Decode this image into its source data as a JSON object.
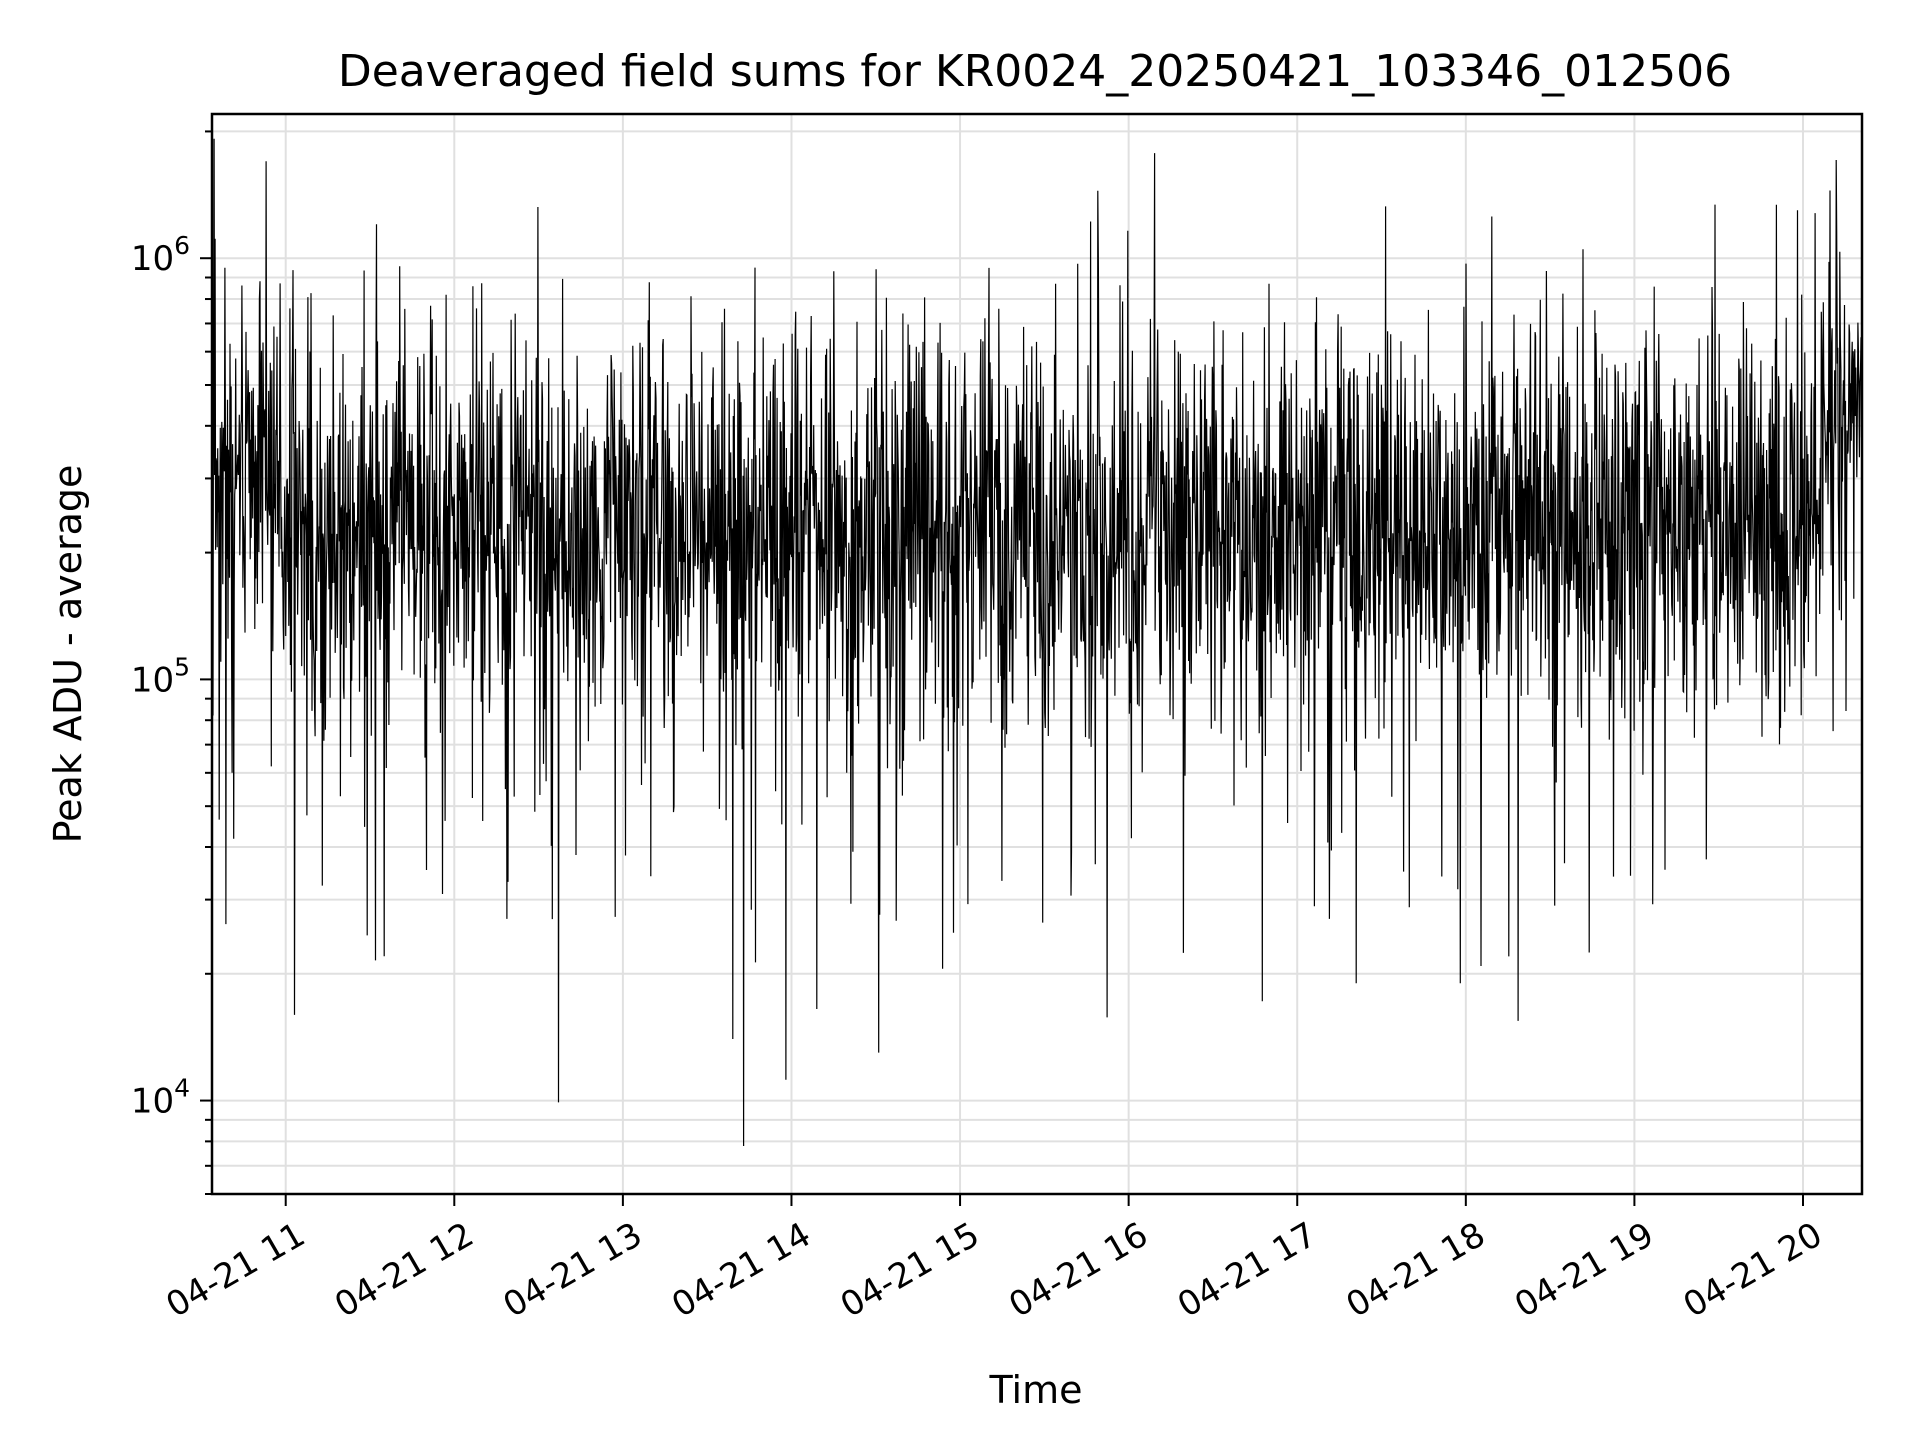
{
  "chart_data": {
    "type": "line",
    "title": "Deaveraged field sums for KR0024_20250421_103346_012506",
    "xlabel": "Time",
    "ylabel": "Peak ADU - average",
    "yscale": "log",
    "ylim": [
      6000,
      2200000
    ],
    "xlim": [
      "2025-04-21 10:33:46",
      "2025-04-21 20:21:00"
    ],
    "x_ticks": [
      {
        "time": "2025-04-21 11:00",
        "label": "04-21 11"
      },
      {
        "time": "2025-04-21 12:00",
        "label": "04-21 12"
      },
      {
        "time": "2025-04-21 13:00",
        "label": "04-21 13"
      },
      {
        "time": "2025-04-21 14:00",
        "label": "04-21 14"
      },
      {
        "time": "2025-04-21 15:00",
        "label": "04-21 15"
      },
      {
        "time": "2025-04-21 16:00",
        "label": "04-21 16"
      },
      {
        "time": "2025-04-21 17:00",
        "label": "04-21 17"
      },
      {
        "time": "2025-04-21 18:00",
        "label": "04-21 18"
      },
      {
        "time": "2025-04-21 19:00",
        "label": "04-21 19"
      },
      {
        "time": "2025-04-21 20:00",
        "label": "04-21 20"
      }
    ],
    "y_ticks": [
      {
        "value": 10000,
        "base": "10",
        "exp": "4"
      },
      {
        "value": 100000,
        "base": "10",
        "exp": "5"
      },
      {
        "value": 1000000,
        "base": "10",
        "exp": "6"
      }
    ],
    "grid": true,
    "line_color": "#000000",
    "series": [
      {
        "typical_level": 230000,
        "extremes": [
          {
            "time": "2025-04-21 10:41",
            "value": 60000
          },
          {
            "time": "2025-04-21 10:53",
            "value": 1700000
          },
          {
            "time": "2025-04-21 11:35",
            "value": 22000
          },
          {
            "time": "2025-04-21 12:37",
            "value": 9900
          },
          {
            "time": "2025-04-21 13:43",
            "value": 7800
          },
          {
            "time": "2025-04-21 13:47",
            "value": 950000
          },
          {
            "time": "2025-04-21 13:58",
            "value": 11200
          },
          {
            "time": "2025-04-21 14:09",
            "value": 16500
          },
          {
            "time": "2025-04-21 14:31",
            "value": 13000
          },
          {
            "time": "2025-04-21 15:34",
            "value": 870000
          },
          {
            "time": "2025-04-21 16:50",
            "value": 870000
          },
          {
            "time": "2025-04-21 17:21",
            "value": 19000
          },
          {
            "time": "2025-04-21 17:58",
            "value": 19000
          },
          {
            "time": "2025-04-21 19:58",
            "value": 1300000
          },
          {
            "time": "2025-04-21 20:12",
            "value": 1150000
          }
        ]
      }
    ]
  }
}
